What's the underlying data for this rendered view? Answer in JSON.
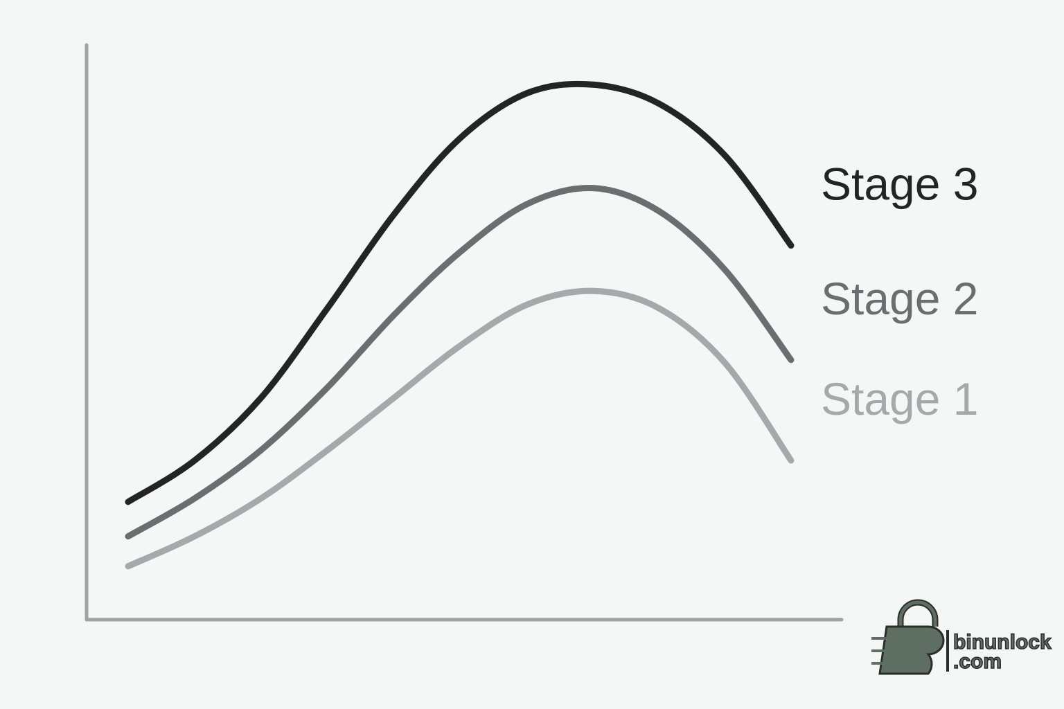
{
  "chart_data": {
    "type": "line",
    "x": [
      5.5,
      14.3,
      23.1,
      31.9,
      40.7,
      49.4,
      58.3,
      67.1,
      75.8,
      84.6,
      93.3
    ],
    "xlim": [
      0,
      100
    ],
    "ylim": [
      0,
      100
    ],
    "series": [
      {
        "name": "Stage 3",
        "color": "#222426",
        "values": [
          20.5,
          27.7,
          38.6,
          54.2,
          70.5,
          83.7,
          91.6,
          93.1,
          89.8,
          80.7,
          65.1
        ]
      },
      {
        "name": "Stage 2",
        "color": "#6b6e71",
        "values": [
          14.5,
          21.1,
          29.5,
          40.4,
          53.0,
          63.9,
          72.3,
          75.1,
          71.1,
          60.8,
          45.2
        ]
      },
      {
        "name": "Stage 1",
        "color": "#a6a9ac",
        "values": [
          9.3,
          14.5,
          21.1,
          29.5,
          38.6,
          47.6,
          54.8,
          57.2,
          54.2,
          44.6,
          27.7
        ]
      }
    ]
  },
  "watermark": {
    "name": "binunlock",
    "domain": ".com"
  }
}
